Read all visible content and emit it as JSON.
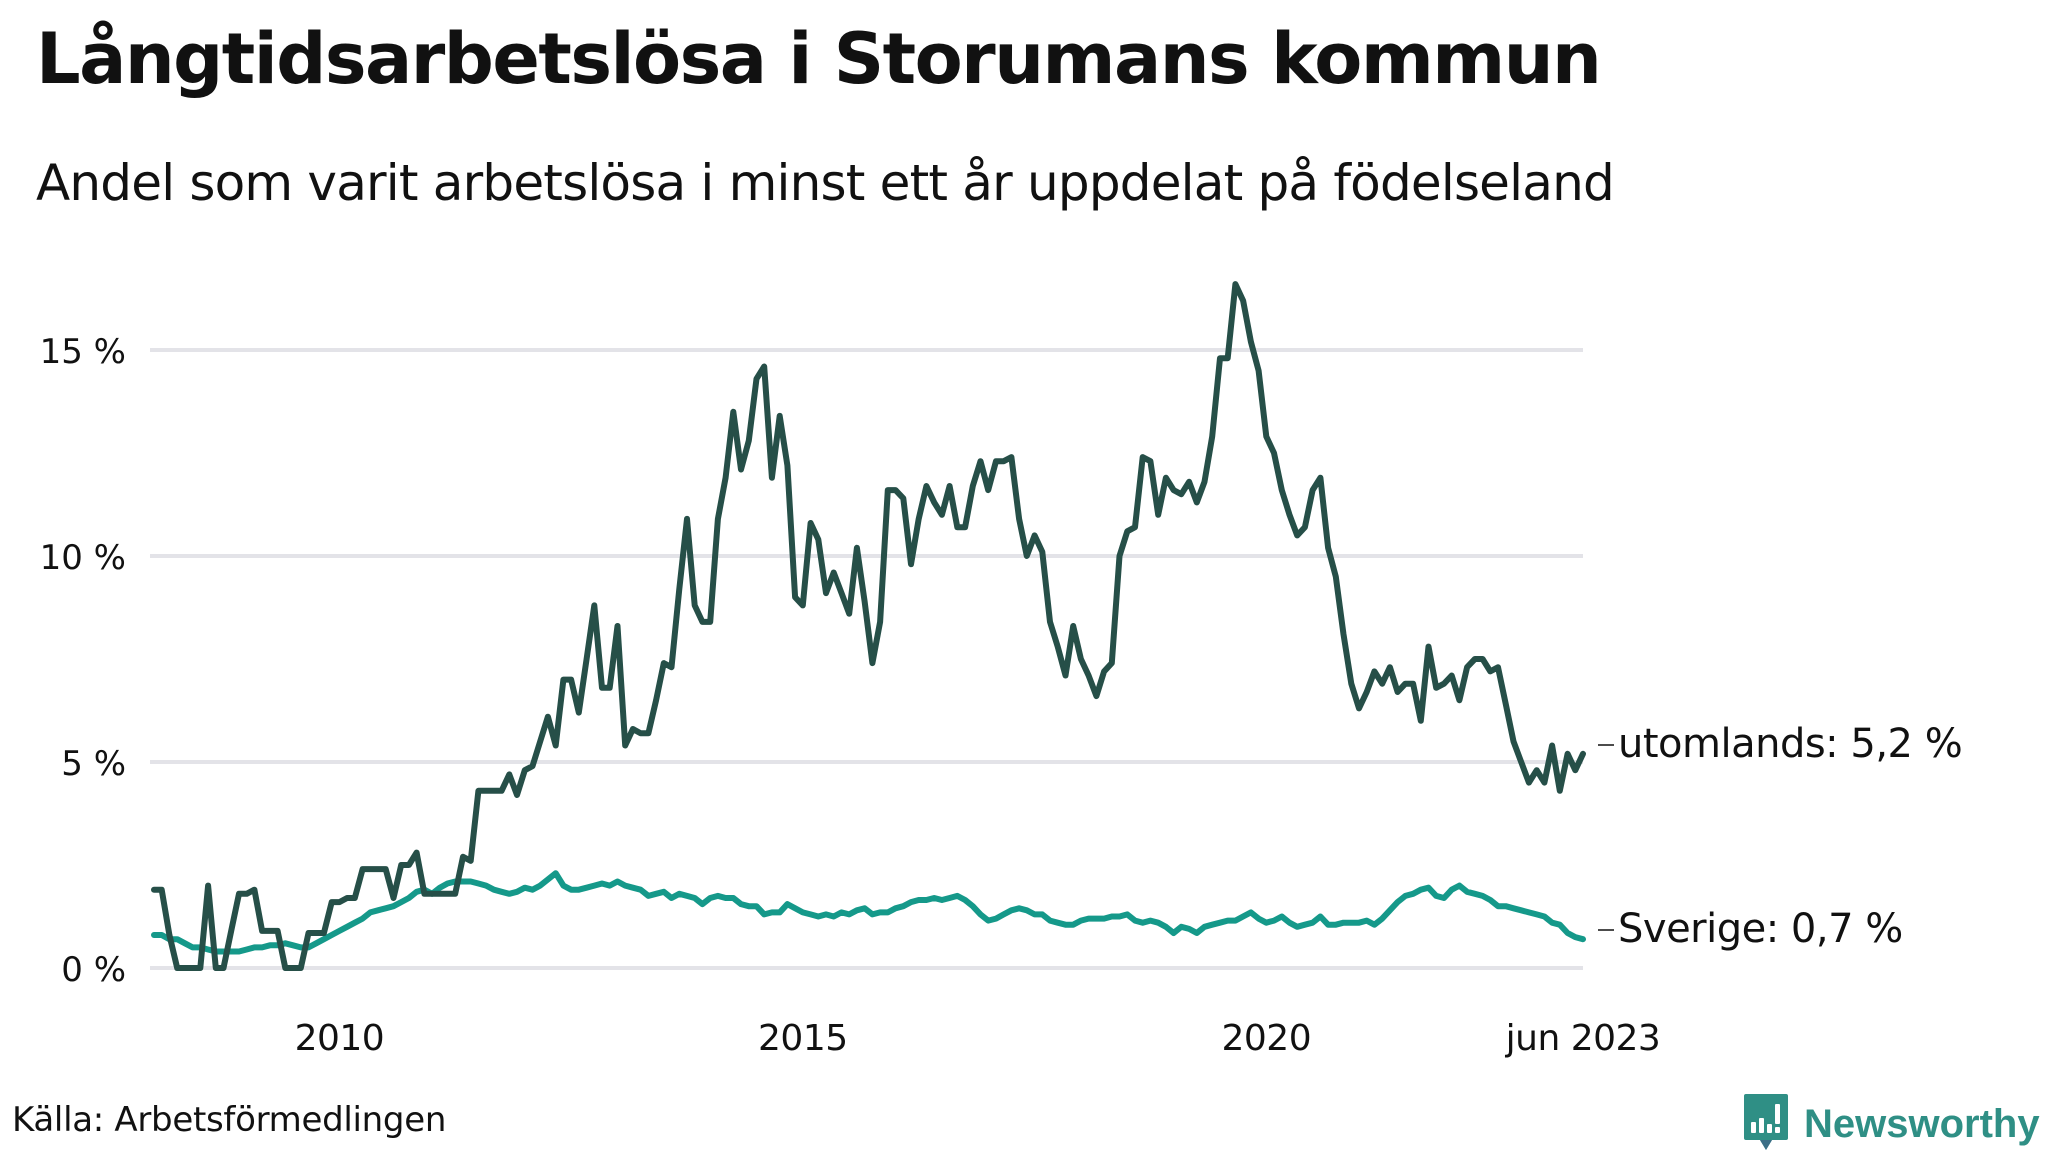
{
  "header": {
    "title": "Långtidsarbetslösa i Storumans kommun",
    "subtitle": "Andel som varit arbetslösa i minst ett år uppdelat på födelseland"
  },
  "footer": {
    "source": "Källa: Arbetsförmedlingen",
    "brand": "Newsworthy",
    "brand_icon": "bar-chart-speech-bubble-icon"
  },
  "colors": {
    "utomlands": "#264f48",
    "sverige": "#15998a",
    "grid": "#e3e3e8",
    "brand": "#2f8f85"
  },
  "chart_data": {
    "type": "line",
    "title": "Långtidsarbetslösa i Storumans kommun",
    "subtitle": "Andel som varit arbetslösa i minst ett år uppdelat på födelseland",
    "xlabel": "",
    "ylabel": "",
    "x_start": "2008-01",
    "x_end": "2023-06",
    "x_frequency": "monthly",
    "x_ticks": [
      {
        "label": "2010",
        "date": "2010-01"
      },
      {
        "label": "2015",
        "date": "2015-01"
      },
      {
        "label": "2020",
        "date": "2020-01"
      },
      {
        "label": "jun 2023",
        "date": "2023-06"
      }
    ],
    "y_ticks": [
      {
        "label": "0 %",
        "value": 0
      },
      {
        "label": "5 %",
        "value": 5
      },
      {
        "label": "10 %",
        "value": 10
      },
      {
        "label": "15 %",
        "value": 15
      }
    ],
    "ylim": [
      0,
      17
    ],
    "grid": "horizontal",
    "legend": "direct-labels-right",
    "series": [
      {
        "name": "utomlands",
        "end_label": "utomlands: 5,2 %",
        "color": "#264f48",
        "values": [
          1.9,
          1.9,
          0.8,
          0.0,
          0.0,
          0.0,
          0.0,
          2.0,
          0.0,
          0.0,
          0.9,
          1.8,
          1.8,
          1.9,
          0.9,
          0.9,
          0.9,
          0.0,
          0.0,
          0.0,
          0.85,
          0.85,
          0.85,
          1.6,
          1.6,
          1.7,
          1.7,
          2.4,
          2.4,
          2.4,
          2.4,
          1.7,
          2.5,
          2.5,
          2.8,
          1.8,
          1.8,
          1.8,
          1.8,
          1.8,
          2.7,
          2.6,
          4.3,
          4.3,
          4.3,
          4.3,
          4.7,
          4.2,
          4.8,
          4.9,
          5.5,
          6.1,
          5.4,
          7.0,
          7.0,
          6.2,
          7.5,
          8.8,
          6.8,
          6.8,
          8.3,
          5.4,
          5.8,
          5.7,
          5.7,
          6.5,
          7.4,
          7.3,
          9.2,
          10.9,
          8.8,
          8.4,
          8.4,
          10.9,
          11.9,
          13.5,
          12.1,
          12.8,
          14.3,
          14.6,
          11.9,
          13.4,
          12.2,
          9.0,
          8.8,
          10.8,
          10.4,
          9.1,
          9.6,
          9.1,
          8.6,
          10.2,
          8.9,
          7.4,
          8.4,
          11.6,
          11.6,
          11.4,
          9.8,
          10.9,
          11.7,
          11.3,
          11.0,
          11.7,
          10.7,
          10.7,
          11.7,
          12.3,
          11.6,
          12.3,
          12.3,
          12.4,
          10.9,
          10.0,
          10.5,
          10.1,
          8.4,
          7.8,
          7.1,
          8.3,
          7.5,
          7.1,
          6.6,
          7.2,
          7.4,
          10.0,
          10.6,
          10.7,
          12.4,
          12.3,
          11.0,
          11.9,
          11.6,
          11.5,
          11.8,
          11.3,
          11.8,
          12.9,
          14.8,
          14.8,
          16.6,
          16.2,
          15.2,
          14.5,
          12.9,
          12.5,
          11.6,
          11.0,
          10.5,
          10.7,
          11.6,
          11.9,
          10.2,
          9.5,
          8.1,
          6.9,
          6.3,
          6.7,
          7.2,
          6.9,
          7.3,
          6.7,
          6.9,
          6.9,
          6.0,
          7.8,
          6.8,
          6.9,
          7.1,
          6.5,
          7.3,
          7.5,
          7.5,
          7.2,
          7.3,
          6.4,
          5.5,
          5.0,
          4.5,
          4.8,
          4.5,
          5.4,
          4.3,
          5.2,
          4.8,
          5.2
        ]
      },
      {
        "name": "Sverige",
        "end_label": "Sverige: 0,7 %",
        "color": "#15998a",
        "values": [
          0.8,
          0.8,
          0.7,
          0.7,
          0.6,
          0.5,
          0.5,
          0.45,
          0.4,
          0.4,
          0.4,
          0.4,
          0.45,
          0.5,
          0.5,
          0.55,
          0.55,
          0.6,
          0.55,
          0.5,
          0.5,
          0.6,
          0.7,
          0.8,
          0.9,
          1.0,
          1.1,
          1.2,
          1.35,
          1.4,
          1.45,
          1.5,
          1.6,
          1.7,
          1.85,
          1.9,
          1.8,
          1.95,
          2.05,
          2.1,
          2.1,
          2.1,
          2.05,
          2.0,
          1.9,
          1.85,
          1.8,
          1.85,
          1.95,
          1.9,
          2.0,
          2.15,
          2.3,
          2.0,
          1.9,
          1.9,
          1.95,
          2.0,
          2.05,
          2.0,
          2.1,
          2.0,
          1.95,
          1.9,
          1.75,
          1.8,
          1.85,
          1.7,
          1.8,
          1.75,
          1.7,
          1.55,
          1.7,
          1.75,
          1.7,
          1.7,
          1.55,
          1.5,
          1.5,
          1.3,
          1.35,
          1.35,
          1.55,
          1.45,
          1.35,
          1.3,
          1.25,
          1.3,
          1.25,
          1.35,
          1.3,
          1.4,
          1.45,
          1.3,
          1.35,
          1.35,
          1.45,
          1.5,
          1.6,
          1.65,
          1.65,
          1.7,
          1.65,
          1.7,
          1.75,
          1.65,
          1.5,
          1.3,
          1.15,
          1.2,
          1.3,
          1.4,
          1.45,
          1.4,
          1.3,
          1.3,
          1.15,
          1.1,
          1.05,
          1.05,
          1.15,
          1.2,
          1.2,
          1.2,
          1.25,
          1.25,
          1.3,
          1.15,
          1.1,
          1.15,
          1.1,
          1.0,
          0.85,
          1.0,
          0.95,
          0.85,
          1.0,
          1.05,
          1.1,
          1.15,
          1.15,
          1.25,
          1.35,
          1.2,
          1.1,
          1.15,
          1.25,
          1.1,
          1.0,
          1.05,
          1.1,
          1.25,
          1.05,
          1.05,
          1.1,
          1.1,
          1.1,
          1.15,
          1.05,
          1.2,
          1.4,
          1.6,
          1.75,
          1.8,
          1.9,
          1.95,
          1.75,
          1.7,
          1.9,
          2.0,
          1.85,
          1.8,
          1.75,
          1.65,
          1.5,
          1.5,
          1.45,
          1.4,
          1.35,
          1.3,
          1.25,
          1.1,
          1.05,
          0.85,
          0.75,
          0.7
        ]
      }
    ]
  }
}
